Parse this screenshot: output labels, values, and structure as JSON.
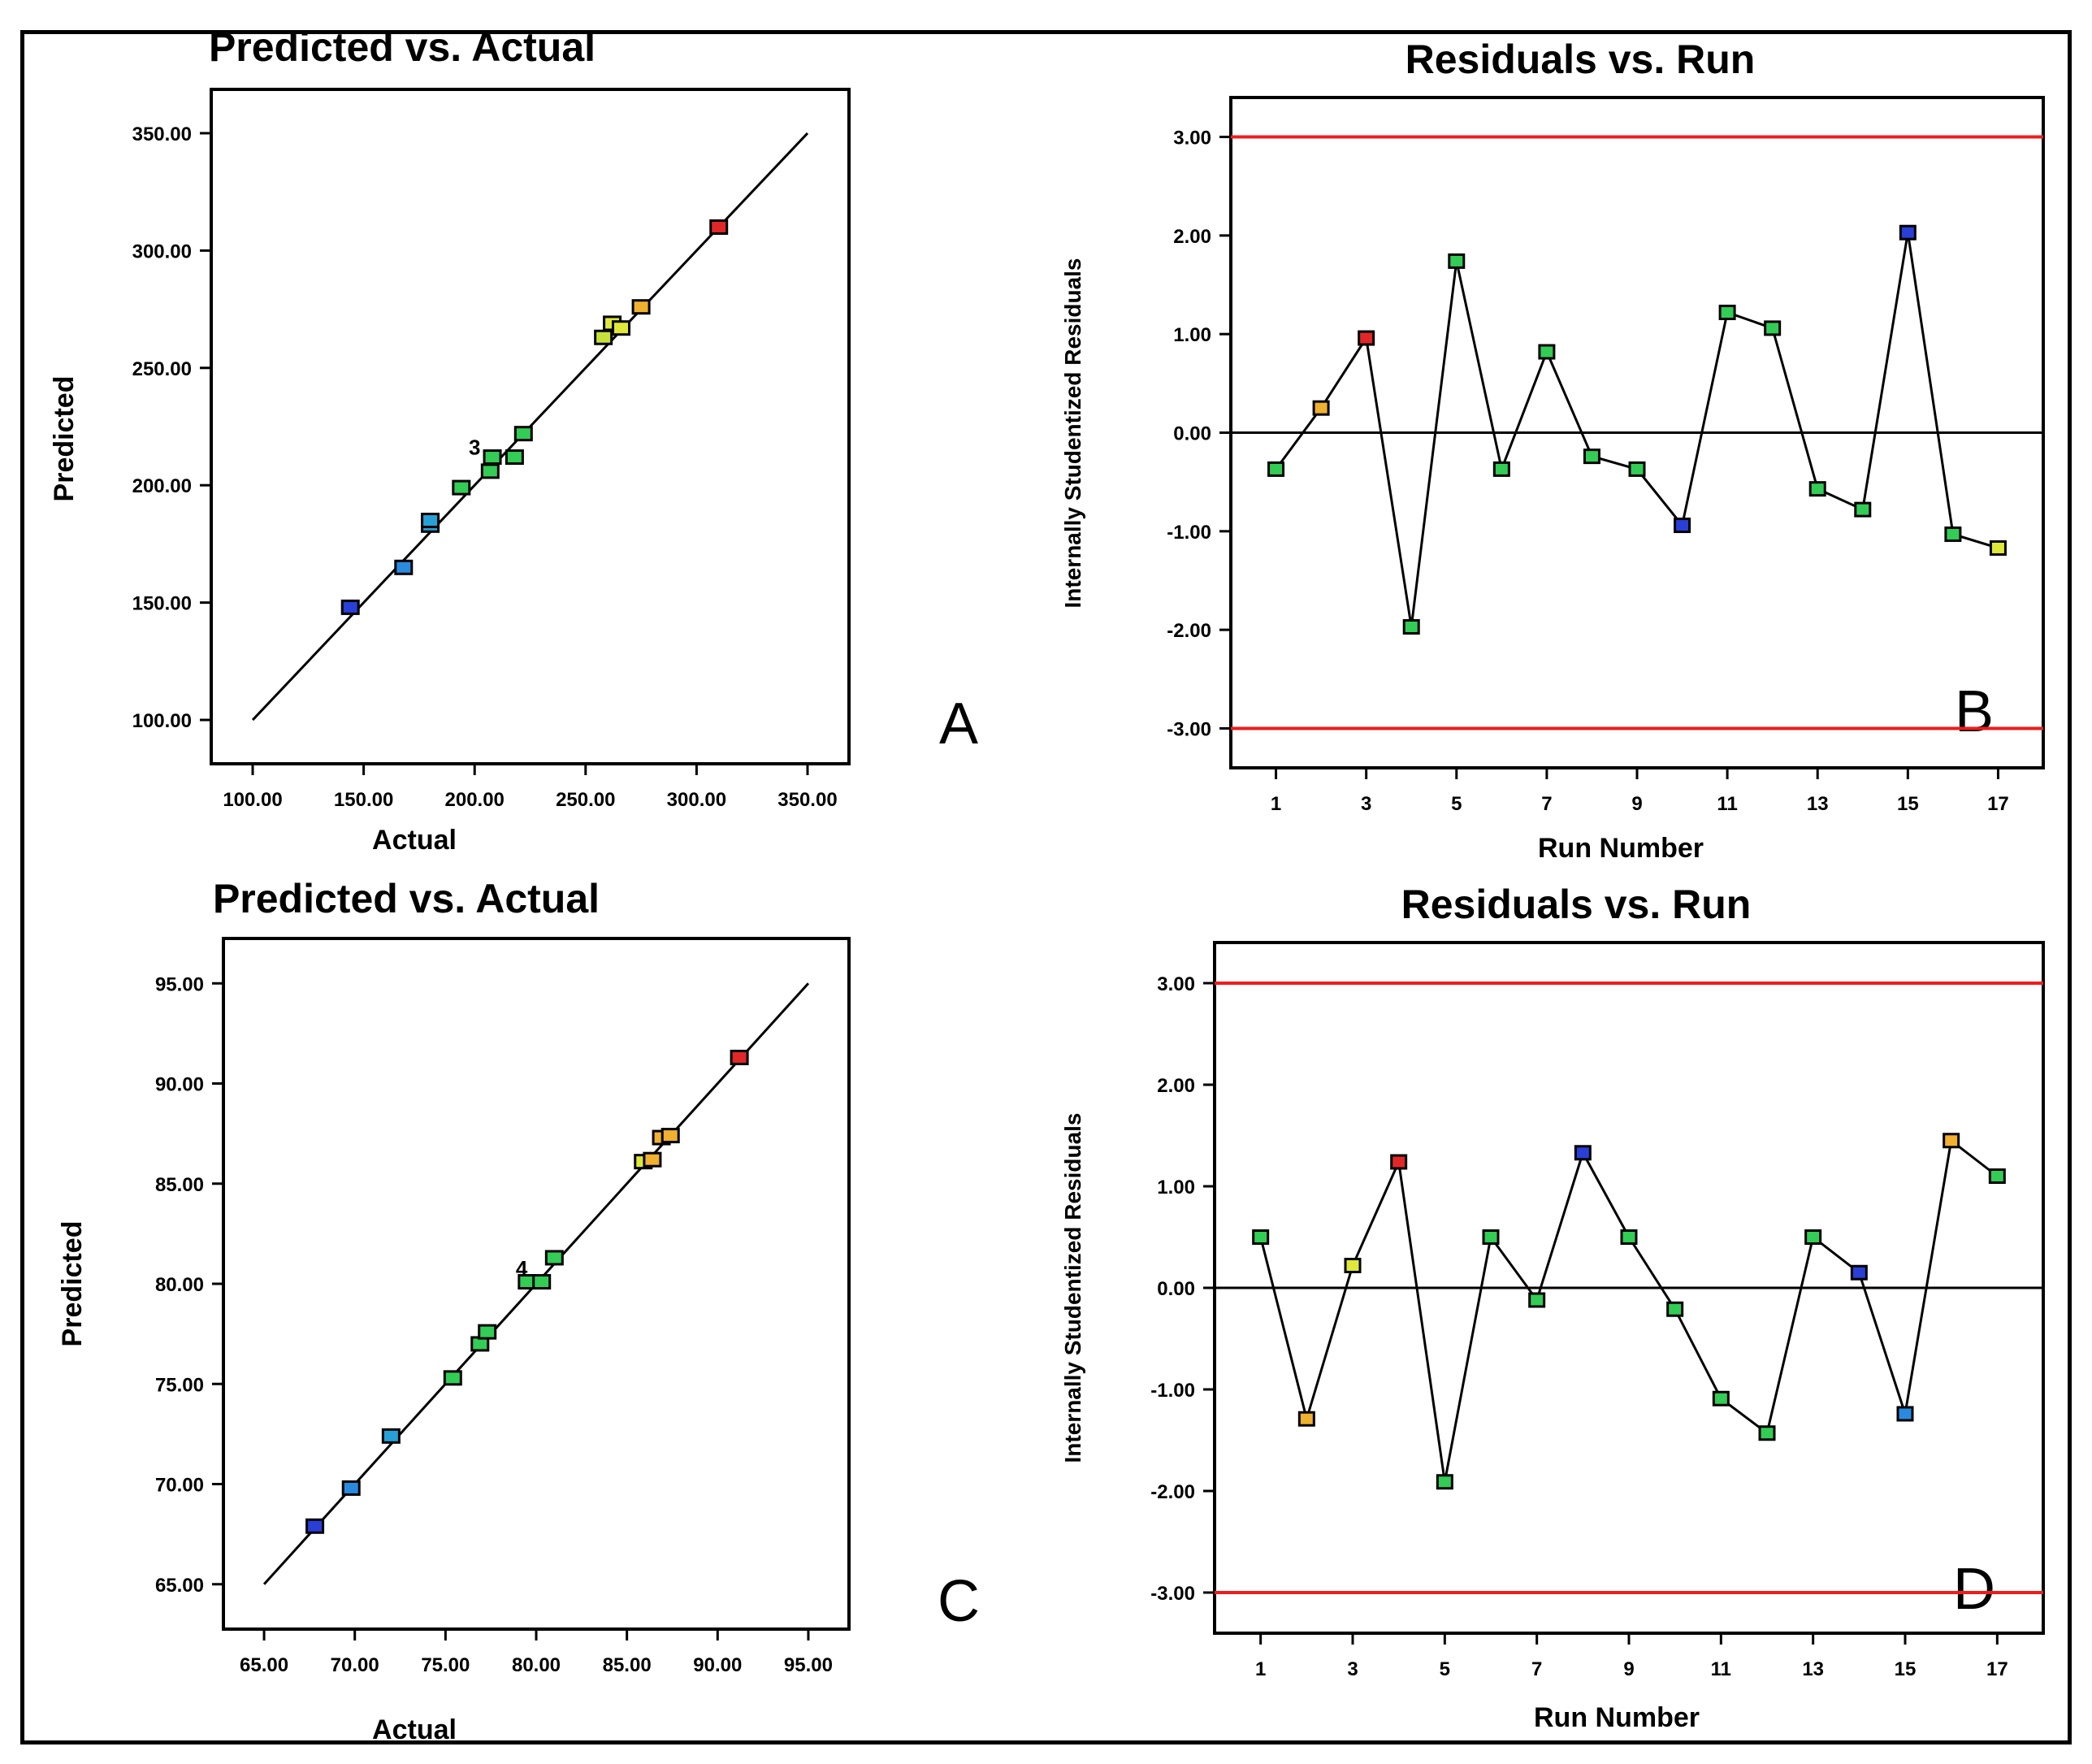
{
  "colors": {
    "limit_line": "#ee1c1c",
    "axis": "#000000",
    "fit_line": "#000000"
  },
  "chart_data": [
    {
      "id": "A",
      "type": "scatter",
      "title": "Predicted vs. Actual",
      "xlabel": "Actual",
      "ylabel": "Predicted",
      "panel_label": "A",
      "xlim": [
        100,
        350
      ],
      "ylim": [
        100,
        350
      ],
      "x_ticks": [
        "100.00",
        "150.00",
        "200.00",
        "250.00",
        "300.00",
        "350.00"
      ],
      "y_ticks": [
        "100.00",
        "150.00",
        "200.00",
        "250.00",
        "300.00",
        "350.00"
      ],
      "reference_line": {
        "from": [
          100,
          100
        ],
        "to": [
          350,
          350
        ]
      },
      "annotation": {
        "text": "3",
        "x": 200,
        "y": 213
      },
      "points": [
        {
          "x": 144,
          "y": 148,
          "color": "#2a3fd6"
        },
        {
          "x": 168,
          "y": 165,
          "color": "#2a8ae0"
        },
        {
          "x": 180,
          "y": 183,
          "color": "#27a0d8"
        },
        {
          "x": 180,
          "y": 185,
          "color": "#27a0d8"
        },
        {
          "x": 194,
          "y": 199,
          "color": "#33cc55"
        },
        {
          "x": 207,
          "y": 206,
          "color": "#33cc55"
        },
        {
          "x": 208,
          "y": 212,
          "color": "#33cc55"
        },
        {
          "x": 218,
          "y": 212,
          "color": "#33cc55"
        },
        {
          "x": 222,
          "y": 222,
          "color": "#33cc55"
        },
        {
          "x": 258,
          "y": 263,
          "color": "#c8e03a"
        },
        {
          "x": 262,
          "y": 269,
          "color": "#dfe83a"
        },
        {
          "x": 266,
          "y": 267,
          "color": "#dfe83a"
        },
        {
          "x": 275,
          "y": 276,
          "color": "#f0b030"
        },
        {
          "x": 310,
          "y": 310,
          "color": "#e02828"
        }
      ]
    },
    {
      "id": "B",
      "type": "line",
      "title": "Residuals vs. Run",
      "xlabel": "Run Number",
      "ylabel": "Internally Studentized Residuals",
      "panel_label": "B",
      "xlim": [
        0,
        18
      ],
      "ylim": [
        -3.4,
        3.4
      ],
      "x_ticks": [
        "1",
        "3",
        "5",
        "7",
        "9",
        "11",
        "13",
        "15",
        "17"
      ],
      "y_ticks": [
        "-3.00",
        "-2.00",
        "-1.00",
        "0.00",
        "1.00",
        "2.00",
        "3.00"
      ],
      "limits": [
        3.0,
        -3.0
      ],
      "zero_line": 0,
      "series": [
        {
          "name": "Residuals",
          "x": [
            1,
            2,
            3,
            4,
            5,
            6,
            7,
            8,
            9,
            10,
            11,
            12,
            13,
            14,
            15,
            16,
            17
          ],
          "values": [
            -0.37,
            0.25,
            0.96,
            -1.97,
            1.74,
            -0.37,
            0.82,
            -0.24,
            -0.37,
            -0.94,
            1.22,
            1.06,
            -0.57,
            -0.78,
            2.03,
            -1.03,
            -1.17
          ],
          "colors": [
            "#33cc55",
            "#f0b030",
            "#e02828",
            "#33cc55",
            "#33cc55",
            "#33cc55",
            "#33cc55",
            "#33cc55",
            "#33cc55",
            "#2a3fd6",
            "#33cc55",
            "#33cc55",
            "#33cc55",
            "#33cc55",
            "#2a3fd6",
            "#33cc55",
            "#dfe83a"
          ]
        }
      ]
    },
    {
      "id": "C",
      "type": "scatter",
      "title": "Predicted vs. Actual",
      "xlabel": "Actual",
      "ylabel": "Predicted",
      "panel_label": "C",
      "xlim": [
        65,
        95
      ],
      "ylim": [
        65,
        95
      ],
      "x_ticks": [
        "65.00",
        "70.00",
        "75.00",
        "80.00",
        "85.00",
        "90.00",
        "95.00"
      ],
      "y_ticks": [
        "65.00",
        "70.00",
        "75.00",
        "80.00",
        "85.00",
        "90.00",
        "95.00"
      ],
      "reference_line": {
        "from": [
          65,
          65
        ],
        "to": [
          95,
          95
        ]
      },
      "annotation": {
        "text": "4",
        "x": 79.2,
        "y": 80.4
      },
      "points": [
        {
          "x": 67.8,
          "y": 67.9,
          "color": "#2a3fd6"
        },
        {
          "x": 69.8,
          "y": 69.8,
          "color": "#2a8ae0"
        },
        {
          "x": 72.0,
          "y": 72.4,
          "color": "#27a0d8"
        },
        {
          "x": 75.4,
          "y": 75.3,
          "color": "#33cc55"
        },
        {
          "x": 76.9,
          "y": 77.0,
          "color": "#33cc55"
        },
        {
          "x": 77.3,
          "y": 77.6,
          "color": "#33cc55"
        },
        {
          "x": 79.5,
          "y": 80.1,
          "color": "#33cc55"
        },
        {
          "x": 80.3,
          "y": 80.1,
          "color": "#33cc55"
        },
        {
          "x": 81.0,
          "y": 81.3,
          "color": "#33cc55"
        },
        {
          "x": 85.9,
          "y": 86.1,
          "color": "#dfe83a"
        },
        {
          "x": 86.4,
          "y": 86.2,
          "color": "#f0b030"
        },
        {
          "x": 86.9,
          "y": 87.3,
          "color": "#f0b030"
        },
        {
          "x": 87.4,
          "y": 87.4,
          "color": "#f0b030"
        },
        {
          "x": 91.2,
          "y": 91.3,
          "color": "#e02828"
        }
      ]
    },
    {
      "id": "D",
      "type": "line",
      "title": "Residuals vs. Run",
      "xlabel": "Run Number",
      "ylabel": "Internally Studentized Residuals",
      "panel_label": "D",
      "xlim": [
        0,
        18
      ],
      "ylim": [
        -3.4,
        3.4
      ],
      "x_ticks": [
        "1",
        "3",
        "5",
        "7",
        "9",
        "11",
        "13",
        "15",
        "17"
      ],
      "y_ticks": [
        "-3.00",
        "-2.00",
        "-1.00",
        "0.00",
        "1.00",
        "2.00",
        "3.00"
      ],
      "limits": [
        3.0,
        -3.0
      ],
      "zero_line": 0,
      "series": [
        {
          "name": "Residuals",
          "x": [
            1,
            2,
            3,
            4,
            5,
            6,
            7,
            8,
            9,
            10,
            11,
            12,
            13,
            14,
            15,
            16,
            17
          ],
          "values": [
            0.5,
            -1.29,
            0.22,
            1.24,
            -1.91,
            0.5,
            -0.12,
            1.33,
            0.5,
            -0.21,
            -1.09,
            -1.43,
            0.5,
            0.15,
            -1.24,
            1.45,
            1.1
          ],
          "colors": [
            "#33cc55",
            "#f0b030",
            "#dfe83a",
            "#e02828",
            "#33cc55",
            "#33cc55",
            "#33cc55",
            "#2a3fd6",
            "#33cc55",
            "#33cc55",
            "#33cc55",
            "#33cc55",
            "#33cc55",
            "#2a3fd6",
            "#2a8ae0",
            "#f0b030",
            "#33cc55"
          ]
        }
      ]
    }
  ]
}
